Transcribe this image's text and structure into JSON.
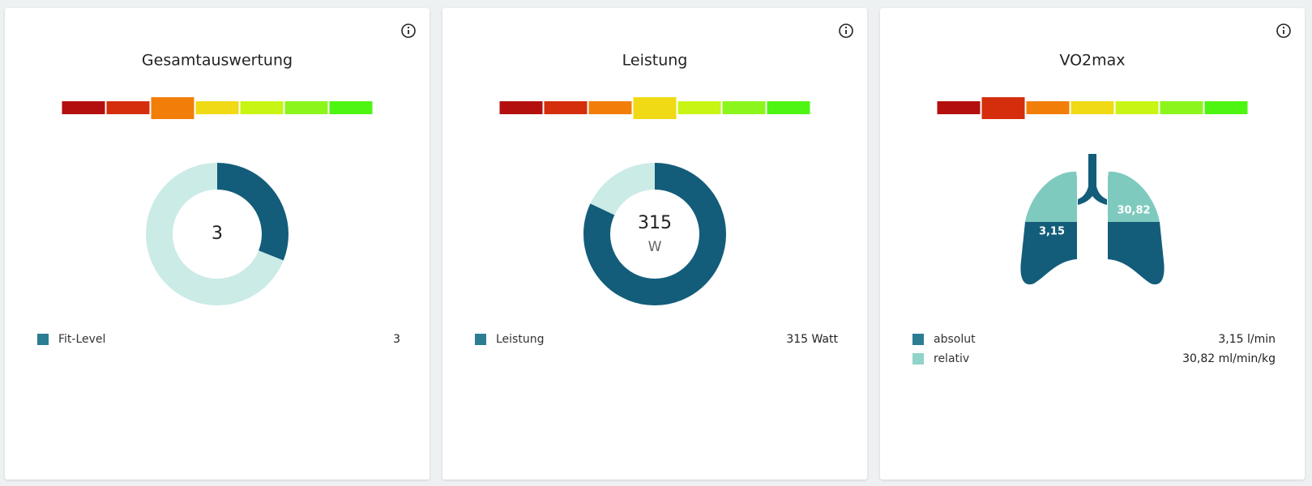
{
  "cards": [
    {
      "title": "Gesamtauswertung",
      "scale_active": 2,
      "center": "3",
      "arc_percent": 31,
      "legend": [
        {
          "label": "Fit-Level",
          "value": "3",
          "color": "#2a7d93"
        }
      ]
    },
    {
      "title": "Leistung",
      "scale_active": 3,
      "center": "315",
      "unit": "W",
      "arc_percent": 82,
      "legend": [
        {
          "label": "Leistung",
          "value": "315 Watt",
          "color": "#2a7d93"
        }
      ]
    },
    {
      "title": "VO2max",
      "scale_active": 1,
      "lung_labels": [
        "3,15",
        "30,82"
      ],
      "legend": [
        {
          "label": "absolut",
          "value": "3,15 l/min",
          "color": "#2a7d93"
        },
        {
          "label": "relativ",
          "value": "30,82 ml/min/kg",
          "color": "#8fd3c9"
        }
      ]
    }
  ],
  "scale_colors": [
    "#b30f0f",
    "#d42e0c",
    "#f27e0a",
    "#f0d915",
    "#c8f514",
    "#8bf51c",
    "#4ef512"
  ],
  "arc_colors": {
    "filled": "#135d7a",
    "rest": "#cbebe6"
  }
}
